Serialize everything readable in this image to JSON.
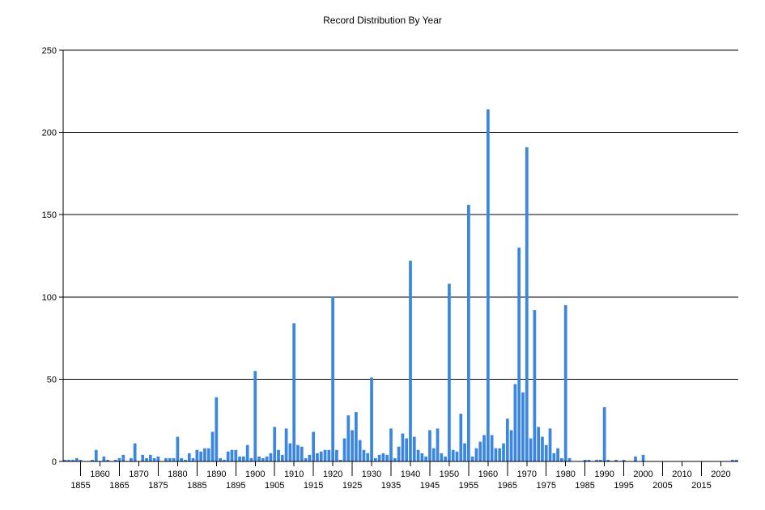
{
  "chart_data": {
    "type": "bar",
    "title": "Record Distribution By Year",
    "xlabel": "",
    "ylabel": "",
    "ylim": [
      0,
      250
    ],
    "yticks": [
      0,
      50,
      100,
      150,
      200,
      250
    ],
    "xlim": [
      1850.5,
      2024.5
    ],
    "xticks": [
      1855,
      1860,
      1865,
      1870,
      1875,
      1880,
      1885,
      1890,
      1895,
      1900,
      1905,
      1910,
      1915,
      1920,
      1925,
      1930,
      1935,
      1940,
      1945,
      1950,
      1955,
      1960,
      1965,
      1970,
      1975,
      1980,
      1985,
      1990,
      1995,
      2000,
      2005,
      2010,
      2015,
      2020
    ],
    "grid": "horizontal",
    "bar_color": "#3a86e0",
    "x": [
      1851,
      1852,
      1853,
      1854,
      1855,
      1858,
      1859,
      1861,
      1862,
      1864,
      1865,
      1866,
      1868,
      1869,
      1871,
      1872,
      1873,
      1874,
      1875,
      1877,
      1878,
      1879,
      1880,
      1881,
      1882,
      1883,
      1884,
      1885,
      1886,
      1887,
      1888,
      1889,
      1890,
      1891,
      1892,
      1893,
      1894,
      1895,
      1896,
      1897,
      1898,
      1899,
      1900,
      1901,
      1902,
      1903,
      1904,
      1905,
      1906,
      1907,
      1908,
      1909,
      1910,
      1911,
      1912,
      1913,
      1914,
      1915,
      1916,
      1917,
      1918,
      1919,
      1920,
      1921,
      1922,
      1923,
      1924,
      1925,
      1926,
      1927,
      1928,
      1929,
      1930,
      1931,
      1932,
      1933,
      1934,
      1935,
      1936,
      1937,
      1938,
      1939,
      1940,
      1941,
      1942,
      1943,
      1944,
      1945,
      1946,
      1947,
      1948,
      1949,
      1950,
      1951,
      1952,
      1953,
      1954,
      1955,
      1956,
      1957,
      1958,
      1959,
      1960,
      1961,
      1962,
      1963,
      1964,
      1965,
      1966,
      1967,
      1968,
      1969,
      1970,
      1971,
      1972,
      1973,
      1974,
      1975,
      1976,
      1977,
      1978,
      1979,
      1980,
      1981,
      1985,
      1986,
      1988,
      1989,
      1990,
      1991,
      1993,
      1995,
      1998,
      2000,
      2023,
      2024
    ],
    "values": [
      1,
      1,
      1,
      2,
      1,
      1,
      7,
      3,
      1,
      1,
      2,
      4,
      2,
      11,
      4,
      2,
      4,
      2,
      3,
      2,
      2,
      2,
      15,
      2,
      1,
      5,
      2,
      7,
      6,
      8,
      8,
      18,
      39,
      2,
      1,
      6,
      7,
      7,
      3,
      3,
      10,
      2,
      55,
      3,
      2,
      3,
      5,
      21,
      7,
      4,
      20,
      11,
      84,
      10,
      9,
      2,
      4,
      18,
      5,
      6,
      7,
      7,
      100,
      7,
      1,
      14,
      28,
      19,
      30,
      13,
      7,
      5,
      51,
      2,
      4,
      5,
      4,
      20,
      2,
      9,
      17,
      14,
      122,
      15,
      7,
      5,
      3,
      19,
      8,
      20,
      5,
      3,
      108,
      7,
      6,
      29,
      11,
      156,
      3,
      8,
      12,
      16,
      214,
      16,
      8,
      8,
      11,
      26,
      19,
      47,
      130,
      42,
      191,
      14,
      92,
      21,
      15,
      10,
      20,
      5,
      8,
      2,
      95,
      2,
      1,
      1,
      1,
      1,
      33,
      1,
      1,
      1,
      3,
      4,
      1,
      1
    ]
  }
}
